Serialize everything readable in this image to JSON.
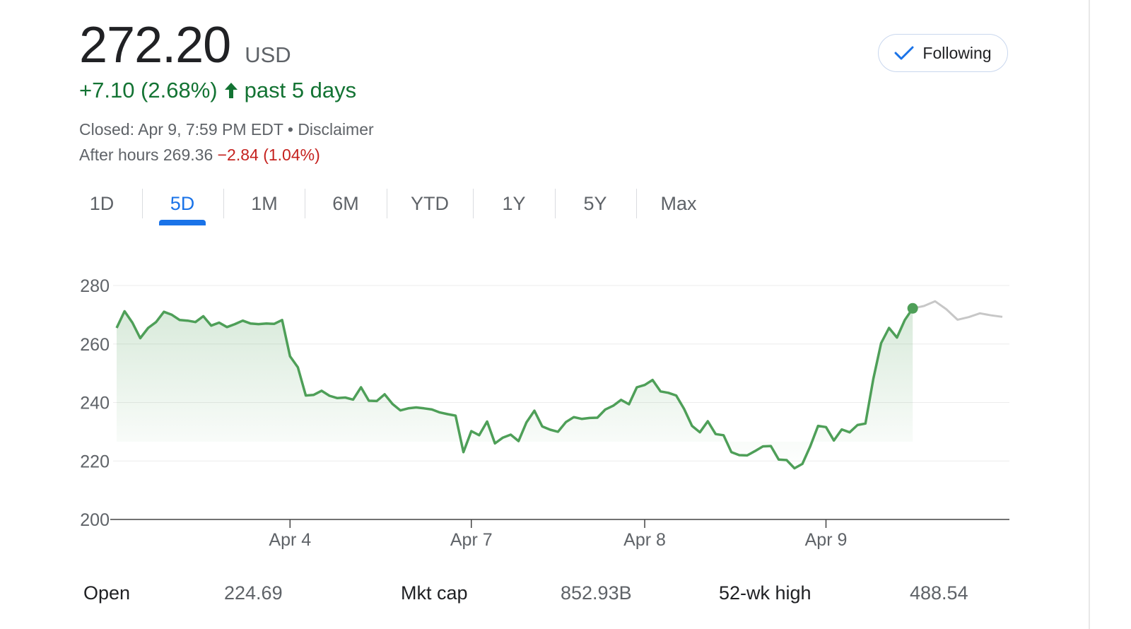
{
  "quote": {
    "price": "272.20",
    "currency": "USD",
    "change": "+7.10 (2.68%)",
    "period": "past 5 days",
    "closed_label": "Closed: Apr 9, 7:59 PM EDT • Disclaimer",
    "after_hours_label": "After hours 269.36",
    "after_hours_change": "−2.84 (1.04%)"
  },
  "follow_button": {
    "label": "Following",
    "icon": "check-icon"
  },
  "tabs": [
    {
      "label": "1D"
    },
    {
      "label": "5D",
      "active": true
    },
    {
      "label": "1M"
    },
    {
      "label": "6M"
    },
    {
      "label": "YTD"
    },
    {
      "label": "1Y"
    },
    {
      "label": "5Y"
    },
    {
      "label": "Max"
    }
  ],
  "colors": {
    "line": "#4e9f58",
    "after_hours": "#c7c7c7",
    "accent": "#1a73e8",
    "positive": "#137333",
    "negative": "#c5221f"
  },
  "chart_data": {
    "type": "area",
    "ylim": [
      200,
      280
    ],
    "y_ticks": [
      280,
      260,
      240,
      220,
      200
    ],
    "x_ticks": [
      "Apr 4",
      "Apr 7",
      "Apr 8",
      "Apr 9"
    ],
    "grid": true,
    "series": [
      {
        "values": [
          265.5,
          271.2,
          267.3,
          262.0,
          265.5,
          267.5,
          271.0,
          270.0,
          268.2,
          268.0,
          267.5,
          269.5,
          266.3,
          267.3,
          265.8,
          266.8,
          268.0,
          267.0,
          266.8,
          267.0,
          266.9,
          268.2,
          255.8,
          252.0,
          242.4,
          242.6,
          244.0,
          242.3,
          241.5,
          241.7,
          241.0,
          245.2,
          240.6,
          240.5,
          242.8,
          239.5,
          237.3,
          238.0,
          238.3,
          238.0,
          237.6,
          236.6,
          236.0,
          235.5,
          223.0,
          230.2,
          228.8,
          233.5,
          226.0,
          228.0,
          229.0,
          226.8,
          233.2,
          237.2,
          231.8,
          230.7,
          230.0,
          233.3,
          235.0,
          234.4,
          234.7,
          234.8,
          237.6,
          238.9,
          240.9,
          239.4,
          245.2,
          246.0,
          247.7,
          243.8,
          243.3,
          242.4,
          237.8,
          232.0,
          229.8,
          233.6,
          229.2,
          228.8,
          223.0,
          222.0,
          221.9,
          223.4,
          225.0,
          225.1,
          220.5,
          220.3,
          217.5,
          219.0,
          225.0,
          232.0,
          231.6,
          227.0,
          230.8,
          229.8,
          232.3,
          232.8,
          248.0,
          260.3,
          265.5,
          262.2,
          268.2,
          272.2
        ]
      },
      {
        "values": [
          272.2,
          273.0,
          274.6,
          271.9,
          268.3,
          269.2,
          270.5,
          269.8,
          269.3
        ]
      }
    ],
    "current_value": 272.2
  },
  "stats": [
    {
      "label": "Open",
      "value": "224.69"
    },
    {
      "label": "Mkt cap",
      "value": "852.93B"
    },
    {
      "label": "52-wk high",
      "value": "488.54"
    }
  ]
}
